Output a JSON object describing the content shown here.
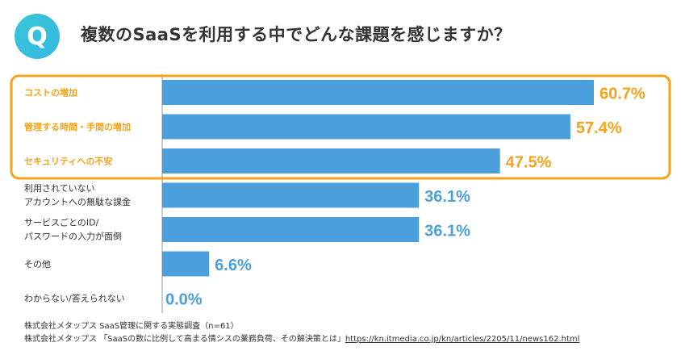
{
  "header": {
    "badge": "Q",
    "question": "複数のSaaSを利用する中でどんな課題を感じますか？"
  },
  "colors": {
    "bar": "#4a9fdc",
    "highlight": "#f5a31a",
    "value_default": "#4a9fdc",
    "badge": "#39c5d8"
  },
  "chart_data": {
    "type": "bar",
    "orientation": "horizontal",
    "unit": "%",
    "xlim": [
      0,
      60.7
    ],
    "categories": [
      [
        "コストの増加"
      ],
      [
        "管理する時間・手間の増加"
      ],
      [
        "セキュリティへの不安"
      ],
      [
        "利用されていない",
        "アカウントへの無駄な課金"
      ],
      [
        "サービスごとのID/",
        "パスワードの入力が面倒"
      ],
      [
        "その他"
      ],
      [
        "わからない/答えられない"
      ]
    ],
    "values": [
      60.7,
      57.4,
      47.5,
      36.1,
      36.1,
      6.6,
      0.0
    ],
    "value_labels": [
      "60.7%",
      "57.4%",
      "47.5%",
      "36.1%",
      "36.1%",
      "6.6%",
      "0.0%"
    ],
    "highlighted": [
      true,
      true,
      true,
      false,
      false,
      false,
      false
    ]
  },
  "footnotes": {
    "line1": "株式会社メタップス SaaS管理に関する実態調査（n=61）",
    "line2_text": "株式会社メタップス 「SaaSの数に比例して高まる情シスの業務負荷、その解決策とは」",
    "line2_link": "https://kn.itmedia.co.jp/kn/articles/2205/11/news162.html"
  }
}
